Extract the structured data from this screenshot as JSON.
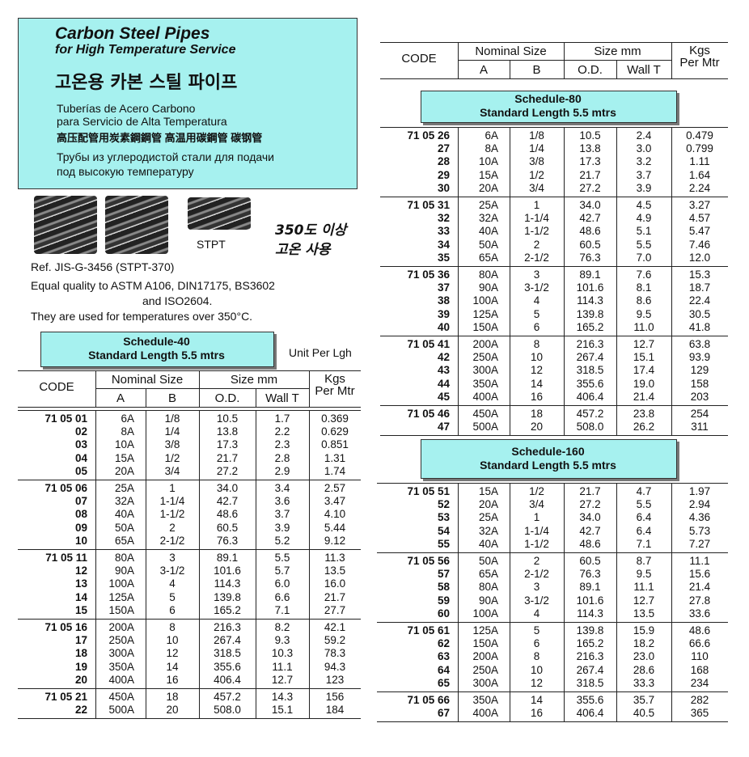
{
  "header": {
    "title": "Carbon Steel Pipes",
    "subtitle": "for High Temperature Service",
    "korean": "고온용 카본 스틸 파이프",
    "spanish": [
      "Tuberías de Acero Carbono",
      "para Servicio de Alta Temperatura"
    ],
    "chinese": "高压配管用炭素鋼鋼管 高温用碳鋼管 碳钢管",
    "russian": [
      "Трубы из углеродистой стали для подачи",
      "под высокую температуру"
    ]
  },
  "images": {
    "label": "STPT",
    "note": [
      "350도 이상",
      "고온 사용"
    ]
  },
  "notes": [
    "Ref. JIS-G-3456 (STPT-370)",
    "Equal quality to ASTM A106, DIN17175, BS3602",
    "and ISO2604.",
    "They are used for temperatures over 350°C."
  ],
  "unit": "Unit Per Lgh",
  "tables": [
    {
      "schedule": [
        "Schedule-40",
        "Standard Length 5.5 mtrs"
      ],
      "header": {
        "code": "CODE",
        "nominal": "Nominal Size",
        "a": "A",
        "b": "B",
        "size": "Size  mm",
        "od": "O.D.",
        "wall": "Wall T",
        "kgs": [
          "Kgs",
          "Per Mtr"
        ]
      },
      "groups": [
        [
          [
            "71 05 01",
            "6A",
            "1/8",
            "10.5",
            "1.7",
            "0.369"
          ],
          [
            "02",
            "8A",
            "1/4",
            "13.8",
            "2.2",
            "0.629"
          ],
          [
            "03",
            "10A",
            "3/8",
            "17.3",
            "2.3",
            "0.851"
          ],
          [
            "04",
            "15A",
            "1/2",
            "21.7",
            "2.8",
            "1.31"
          ],
          [
            "05",
            "20A",
            "3/4",
            "27.2",
            "2.9",
            "1.74"
          ]
        ],
        [
          [
            "71 05 06",
            "25A",
            "1",
            "34.0",
            "3.4",
            "2.57"
          ],
          [
            "07",
            "32A",
            "1-1/4",
            "42.7",
            "3.6",
            "3.47"
          ],
          [
            "08",
            "40A",
            "1-1/2",
            "48.6",
            "3.7",
            "4.10"
          ],
          [
            "09",
            "50A",
            "2",
            "60.5",
            "3.9",
            "5.44"
          ],
          [
            "10",
            "65A",
            "2-1/2",
            "76.3",
            "5.2",
            "9.12"
          ]
        ],
        [
          [
            "71 05 11",
            "80A",
            "3",
            "89.1",
            "5.5",
            "11.3"
          ],
          [
            "12",
            "90A",
            "3-1/2",
            "101.6",
            "5.7",
            "13.5"
          ],
          [
            "13",
            "100A",
            "4",
            "114.3",
            "6.0",
            "16.0"
          ],
          [
            "14",
            "125A",
            "5",
            "139.8",
            "6.6",
            "21.7"
          ],
          [
            "15",
            "150A",
            "6",
            "165.2",
            "7.1",
            "27.7"
          ]
        ],
        [
          [
            "71 05 16",
            "200A",
            "8",
            "216.3",
            "8.2",
            "42.1"
          ],
          [
            "17",
            "250A",
            "10",
            "267.4",
            "9.3",
            "59.2"
          ],
          [
            "18",
            "300A",
            "12",
            "318.5",
            "10.3",
            "78.3"
          ],
          [
            "19",
            "350A",
            "14",
            "355.6",
            "11.1",
            "94.3"
          ],
          [
            "20",
            "400A",
            "16",
            "406.4",
            "12.7",
            "123"
          ]
        ],
        [
          [
            "71 05 21",
            "450A",
            "18",
            "457.2",
            "14.3",
            "156"
          ],
          [
            "22",
            "500A",
            "20",
            "508.0",
            "15.1",
            "184"
          ]
        ]
      ]
    },
    {
      "schedule": [
        "Schedule-80",
        "Standard Length 5.5 mtrs"
      ],
      "header": {
        "code": "CODE",
        "nominal": "Nominal Size",
        "a": "A",
        "b": "B",
        "size": "Size  mm",
        "od": "O.D.",
        "wall": "Wall T",
        "kgs": [
          "Kgs",
          "Per Mtr"
        ]
      },
      "groups": [
        [
          [
            "71 05 26",
            "6A",
            "1/8",
            "10.5",
            "2.4",
            "0.479"
          ],
          [
            "27",
            "8A",
            "1/4",
            "13.8",
            "3.0",
            "0.799"
          ],
          [
            "28",
            "10A",
            "3/8",
            "17.3",
            "3.2",
            "1.11"
          ],
          [
            "29",
            "15A",
            "1/2",
            "21.7",
            "3.7",
            "1.64"
          ],
          [
            "30",
            "20A",
            "3/4",
            "27.2",
            "3.9",
            "2.24"
          ]
        ],
        [
          [
            "71 05 31",
            "25A",
            "1",
            "34.0",
            "4.5",
            "3.27"
          ],
          [
            "32",
            "32A",
            "1-1/4",
            "42.7",
            "4.9",
            "4.57"
          ],
          [
            "33",
            "40A",
            "1-1/2",
            "48.6",
            "5.1",
            "5.47"
          ],
          [
            "34",
            "50A",
            "2",
            "60.5",
            "5.5",
            "7.46"
          ],
          [
            "35",
            "65A",
            "2-1/2",
            "76.3",
            "7.0",
            "12.0"
          ]
        ],
        [
          [
            "71 05 36",
            "80A",
            "3",
            "89.1",
            "7.6",
            "15.3"
          ],
          [
            "37",
            "90A",
            "3-1/2",
            "101.6",
            "8.1",
            "18.7"
          ],
          [
            "38",
            "100A",
            "4",
            "114.3",
            "8.6",
            "22.4"
          ],
          [
            "39",
            "125A",
            "5",
            "139.8",
            "9.5",
            "30.5"
          ],
          [
            "40",
            "150A",
            "6",
            "165.2",
            "11.0",
            "41.8"
          ]
        ],
        [
          [
            "71 05 41",
            "200A",
            "8",
            "216.3",
            "12.7",
            "63.8"
          ],
          [
            "42",
            "250A",
            "10",
            "267.4",
            "15.1",
            "93.9"
          ],
          [
            "43",
            "300A",
            "12",
            "318.5",
            "17.4",
            "129"
          ],
          [
            "44",
            "350A",
            "14",
            "355.6",
            "19.0",
            "158"
          ],
          [
            "45",
            "400A",
            "16",
            "406.4",
            "21.4",
            "203"
          ]
        ],
        [
          [
            "71 05 46",
            "450A",
            "18",
            "457.2",
            "23.8",
            "254"
          ],
          [
            "47",
            "500A",
            "20",
            "508.0",
            "26.2",
            "311"
          ]
        ]
      ]
    },
    {
      "schedule": [
        "Schedule-160",
        "Standard Length 5.5 mtrs"
      ],
      "groups": [
        [
          [
            "71 05 51",
            "15A",
            "1/2",
            "21.7",
            "4.7",
            "1.97"
          ],
          [
            "52",
            "20A",
            "3/4",
            "27.2",
            "5.5",
            "2.94"
          ],
          [
            "53",
            "25A",
            "1",
            "34.0",
            "6.4",
            "4.36"
          ],
          [
            "54",
            "32A",
            "1-1/4",
            "42.7",
            "6.4",
            "5.73"
          ],
          [
            "55",
            "40A",
            "1-1/2",
            "48.6",
            "7.1",
            "7.27"
          ]
        ],
        [
          [
            "71 05 56",
            "50A",
            "2",
            "60.5",
            "8.7",
            "11.1"
          ],
          [
            "57",
            "65A",
            "2-1/2",
            "76.3",
            "9.5",
            "15.6"
          ],
          [
            "58",
            "80A",
            "3",
            "89.1",
            "11.1",
            "21.4"
          ],
          [
            "59",
            "90A",
            "3-1/2",
            "101.6",
            "12.7",
            "27.8"
          ],
          [
            "60",
            "100A",
            "4",
            "114.3",
            "13.5",
            "33.6"
          ]
        ],
        [
          [
            "71 05 61",
            "125A",
            "5",
            "139.8",
            "15.9",
            "48.6"
          ],
          [
            "62",
            "150A",
            "6",
            "165.2",
            "18.2",
            "66.6"
          ],
          [
            "63",
            "200A",
            "8",
            "216.3",
            "23.0",
            "110"
          ],
          [
            "64",
            "250A",
            "10",
            "267.4",
            "28.6",
            "168"
          ],
          [
            "65",
            "300A",
            "12",
            "318.5",
            "33.3",
            "234"
          ]
        ],
        [
          [
            "71 05 66",
            "350A",
            "14",
            "355.6",
            "35.7",
            "282"
          ],
          [
            "67",
            "400A",
            "16",
            "406.4",
            "40.5",
            "365"
          ]
        ]
      ]
    }
  ]
}
